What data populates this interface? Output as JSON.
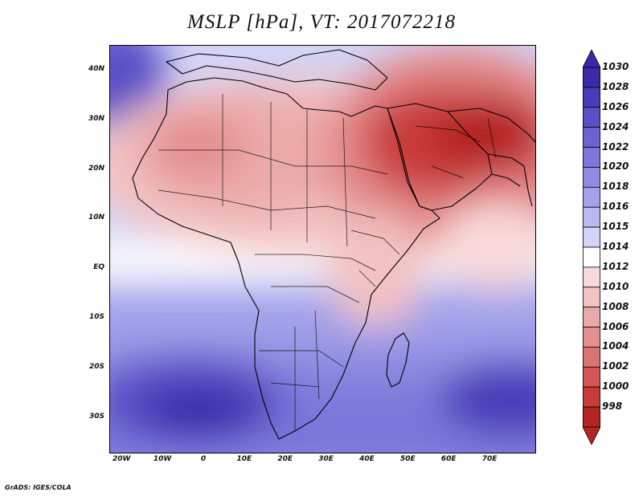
{
  "title": "MSLP [hPa], VT: 2017072218",
  "credit": "GrADS: IGES/COLA",
  "y_axis": {
    "labels": [
      "40N",
      "30N",
      "20N",
      "10N",
      "EQ",
      "10S",
      "20S",
      "30S"
    ],
    "values": [
      40,
      30,
      20,
      10,
      0,
      -10,
      -20,
      -30
    ]
  },
  "x_axis": {
    "labels": [
      "20W",
      "10W",
      "0",
      "10E",
      "20E",
      "30E",
      "40E",
      "50E",
      "60E",
      "70E"
    ],
    "values": [
      -20,
      -10,
      0,
      10,
      20,
      30,
      40,
      50,
      60,
      70
    ]
  },
  "colorbar": {
    "unit": "hPa",
    "labels": [
      "1030",
      "1028",
      "1026",
      "1024",
      "1022",
      "1020",
      "1018",
      "1016",
      "1015",
      "1014",
      "1012",
      "1010",
      "1008",
      "1006",
      "1004",
      "1002",
      "1000",
      "998"
    ],
    "colors": [
      "#3a2aa8",
      "#4a3cb8",
      "#5a50c6",
      "#6b63d0",
      "#7c77da",
      "#8f8ce2",
      "#a3a2ea",
      "#b8b9f1",
      "#d3d5f8",
      "#ffffff",
      "#f9dada",
      "#f3c2c2",
      "#ebaaaa",
      "#e49090",
      "#dc7373",
      "#d45656",
      "#c83b3b",
      "#b52424"
    ]
  },
  "domain": {
    "lon_range": [
      -23,
      81
    ],
    "lat_range": [
      -37,
      45
    ]
  }
}
